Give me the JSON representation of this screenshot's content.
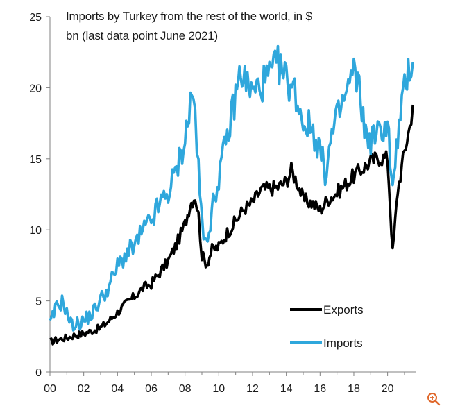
{
  "chart_data": {
    "type": "line",
    "title_line1": "Imports by Turkey from the rest of the world, in $",
    "title_line2": "bn (last data point June 2021)",
    "xlabel": "",
    "ylabel": "",
    "xlim": [
      2000,
      2021.7
    ],
    "ylim": [
      0,
      25
    ],
    "y_ticks": [
      "0",
      "5",
      "10",
      "15",
      "20",
      "25"
    ],
    "x_ticks": [
      "00",
      "02",
      "04",
      "06",
      "08",
      "10",
      "12",
      "14",
      "16",
      "18",
      "20"
    ],
    "legend_position": "bottom-right",
    "series": [
      {
        "name": "Exports",
        "color": "#000000",
        "points": [
          [
            2000.0,
            2.1
          ],
          [
            2000.5,
            2.3
          ],
          [
            2001.0,
            2.4
          ],
          [
            2001.5,
            2.6
          ],
          [
            2002.0,
            2.7
          ],
          [
            2002.5,
            2.9
          ],
          [
            2003.0,
            3.1
          ],
          [
            2003.5,
            3.6
          ],
          [
            2004.0,
            4.2
          ],
          [
            2004.5,
            4.8
          ],
          [
            2005.0,
            5.3
          ],
          [
            2005.5,
            5.9
          ],
          [
            2006.0,
            6.2
          ],
          [
            2006.5,
            7.0
          ],
          [
            2007.0,
            7.8
          ],
          [
            2007.5,
            9.0
          ],
          [
            2008.0,
            10.4
          ],
          [
            2008.3,
            11.8
          ],
          [
            2008.6,
            12.4
          ],
          [
            2008.8,
            11.0
          ],
          [
            2009.0,
            8.2
          ],
          [
            2009.3,
            7.6
          ],
          [
            2009.6,
            8.6
          ],
          [
            2010.0,
            8.8
          ],
          [
            2010.5,
            9.8
          ],
          [
            2011.0,
            10.6
          ],
          [
            2011.5,
            11.5
          ],
          [
            2012.0,
            11.9
          ],
          [
            2012.5,
            12.8
          ],
          [
            2013.0,
            12.9
          ],
          [
            2013.5,
            13.0
          ],
          [
            2014.0,
            13.4
          ],
          [
            2014.3,
            14.2
          ],
          [
            2014.7,
            13.2
          ],
          [
            2015.0,
            12.1
          ],
          [
            2015.5,
            11.9
          ],
          [
            2016.0,
            11.4
          ],
          [
            2016.5,
            12.2
          ],
          [
            2017.0,
            12.6
          ],
          [
            2017.5,
            13.2
          ],
          [
            2018.0,
            13.8
          ],
          [
            2018.5,
            14.3
          ],
          [
            2019.0,
            14.8
          ],
          [
            2019.5,
            15.1
          ],
          [
            2020.0,
            15.0
          ],
          [
            2020.3,
            8.4
          ],
          [
            2020.6,
            12.8
          ],
          [
            2021.0,
            15.5
          ],
          [
            2021.3,
            17.2
          ],
          [
            2021.5,
            18.8
          ]
        ]
      },
      {
        "name": "Imports",
        "color": "#2fa7dc",
        "points": [
          [
            2000.0,
            3.3
          ],
          [
            2000.4,
            4.6
          ],
          [
            2000.8,
            5.0
          ],
          [
            2001.0,
            4.1
          ],
          [
            2001.3,
            3.3
          ],
          [
            2001.7,
            3.4
          ],
          [
            2002.0,
            3.6
          ],
          [
            2002.5,
            4.1
          ],
          [
            2003.0,
            5.1
          ],
          [
            2003.5,
            6.0
          ],
          [
            2004.0,
            7.4
          ],
          [
            2004.5,
            8.3
          ],
          [
            2005.0,
            8.8
          ],
          [
            2005.5,
            9.9
          ],
          [
            2006.0,
            10.6
          ],
          [
            2006.5,
            11.8
          ],
          [
            2007.0,
            12.6
          ],
          [
            2007.5,
            14.2
          ],
          [
            2008.0,
            16.4
          ],
          [
            2008.4,
            19.5
          ],
          [
            2008.6,
            18.4
          ],
          [
            2008.8,
            14.0
          ],
          [
            2009.1,
            9.0
          ],
          [
            2009.5,
            10.6
          ],
          [
            2010.0,
            13.8
          ],
          [
            2010.5,
            16.4
          ],
          [
            2011.0,
            19.5
          ],
          [
            2011.3,
            21.2
          ],
          [
            2011.7,
            20.2
          ],
          [
            2012.0,
            19.6
          ],
          [
            2012.5,
            20.2
          ],
          [
            2013.0,
            20.8
          ],
          [
            2013.5,
            21.6
          ],
          [
            2014.0,
            20.6
          ],
          [
            2014.5,
            19.8
          ],
          [
            2015.0,
            17.6
          ],
          [
            2015.5,
            17.2
          ],
          [
            2016.0,
            15.6
          ],
          [
            2016.3,
            14.0
          ],
          [
            2016.7,
            16.6
          ],
          [
            2017.0,
            17.8
          ],
          [
            2017.5,
            19.4
          ],
          [
            2018.0,
            21.2
          ],
          [
            2018.4,
            19.4
          ],
          [
            2018.7,
            16.6
          ],
          [
            2019.0,
            16.4
          ],
          [
            2019.5,
            16.8
          ],
          [
            2020.0,
            17.6
          ],
          [
            2020.3,
            12.6
          ],
          [
            2020.6,
            16.6
          ],
          [
            2021.0,
            19.8
          ],
          [
            2021.3,
            21.6
          ],
          [
            2021.5,
            21.8
          ]
        ]
      }
    ]
  },
  "controls": {
    "zoom_icon": "zoom-in-icon"
  }
}
